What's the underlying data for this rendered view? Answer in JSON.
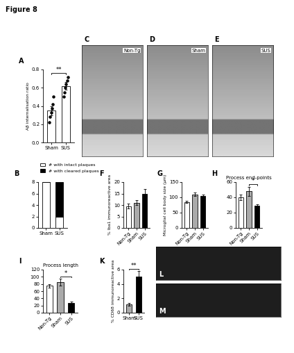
{
  "title": "Figure 8",
  "chart_data": [
    {
      "type": "bar",
      "panel": "A",
      "y_label": "Aβ internalisation ratio",
      "categories": [
        "Sham",
        "SUS"
      ],
      "values": [
        0.35,
        0.62
      ],
      "errors": [
        0.05,
        0.04
      ],
      "points": [
        [
          0.22,
          0.28,
          0.33,
          0.37,
          0.42,
          0.5
        ],
        [
          0.5,
          0.55,
          0.6,
          0.64,
          0.68,
          0.72
        ]
      ],
      "colors": [
        "#ffffff",
        "#ffffff"
      ],
      "annotations": [
        "**"
      ],
      "ylim": [
        0,
        0.8
      ],
      "yticks": [
        {
          "value": 0,
          "label": "0.0"
        },
        {
          "value": 0.2,
          "label": "0.2"
        },
        {
          "value": 0.4,
          "label": "0.4"
        },
        {
          "value": 0.6,
          "label": "0.6"
        },
        {
          "value": 0.8,
          "label": "0.8"
        }
      ]
    },
    {
      "type": "bar",
      "panel": "B",
      "stacked": true,
      "legend": "upper left",
      "categories": [
        "Sham",
        "SUS"
      ],
      "series": [
        {
          "name": "# with intact plaques",
          "color": "#ffffff",
          "values": [
            8,
            2
          ]
        },
        {
          "name": "# with cleared plaques",
          "color": "#000000",
          "values": [
            0,
            6
          ]
        }
      ],
      "ylim": [
        0,
        8
      ],
      "yticks": [
        0,
        2,
        4,
        6,
        8
      ]
    },
    {
      "type": "bar",
      "panel": "F",
      "y_label": "% Iba1 immunoreactive area",
      "categories": [
        "Non-Tg",
        "Sham",
        "SUS"
      ],
      "values": [
        9.5,
        11,
        15
      ],
      "errors": [
        1,
        1,
        2
      ],
      "colors": [
        "#ffffff",
        "#aaaaaa",
        "#000000"
      ],
      "ylim": [
        0,
        20
      ],
      "yticks": [
        0,
        5,
        10,
        15,
        20
      ]
    },
    {
      "type": "bar",
      "panel": "G",
      "y_label": "Microglial cell body size (µm)",
      "categories": [
        "Non-Tg",
        "Sham",
        "SUS"
      ],
      "values": [
        85,
        110,
        105
      ],
      "errors": [
        3,
        5,
        3
      ],
      "colors": [
        "#ffffff",
        "#aaaaaa",
        "#000000"
      ],
      "ylim": [
        0,
        150
      ],
      "yticks": [
        0,
        50,
        100,
        150
      ]
    },
    {
      "type": "bar",
      "panel": "H",
      "title": "Process end-points",
      "categories": [
        "Non-Tg",
        "Sham",
        "SUS"
      ],
      "values": [
        40,
        48,
        29
      ],
      "errors": [
        4,
        6,
        2
      ],
      "colors": [
        "#ffffff",
        "#aaaaaa",
        "#000000"
      ],
      "annotations": [
        "*"
      ],
      "ylim": [
        0,
        60
      ],
      "yticks": [
        0,
        20,
        40,
        60
      ]
    },
    {
      "type": "bar",
      "panel": "I",
      "title": "Process length",
      "categories": [
        "Non-Tg",
        "Sham",
        "SUS"
      ],
      "values": [
        75,
        85,
        28
      ],
      "errors": [
        5,
        10,
        3
      ],
      "colors": [
        "#ffffff",
        "#aaaaaa",
        "#000000"
      ],
      "annotations": [
        "*"
      ],
      "ylim": [
        0,
        120
      ],
      "yticks": [
        0,
        20,
        40,
        60,
        80,
        100,
        120
      ]
    },
    {
      "type": "bar",
      "panel": "K",
      "y_label": "% CD68 immunoreactive area",
      "categories": [
        "Sham",
        "SUS"
      ],
      "values": [
        1.2,
        5
      ],
      "errors": [
        0.2,
        0.8
      ],
      "colors": [
        "#aaaaaa",
        "#000000"
      ],
      "annotations": [
        "**"
      ],
      "ylim": [
        0,
        6
      ],
      "yticks": [
        0,
        2,
        4,
        6
      ]
    }
  ],
  "images": [
    {
      "panel": "C",
      "label": "Non-Tg"
    },
    {
      "panel": "D",
      "label": "Sham"
    },
    {
      "panel": "E",
      "label": "SUS"
    },
    {
      "panel": "L"
    },
    {
      "panel": "M"
    }
  ]
}
